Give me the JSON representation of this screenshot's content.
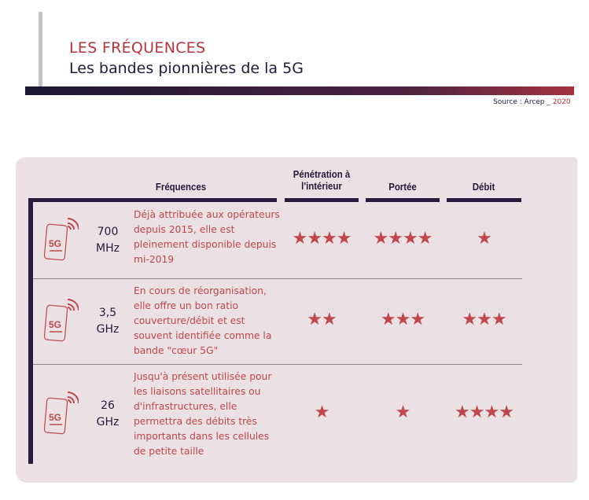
{
  "header": {
    "kicker": "LES FRÉQUENCES",
    "title": "Les bandes pionnières de la 5G",
    "source_label": "Source : Arcep _ ",
    "source_year": "2020"
  },
  "table": {
    "columns": [
      "Fréquences",
      "Pénétration à l'intérieur",
      "Portée",
      "Débit"
    ],
    "accent": "#c0464a",
    "rows": [
      {
        "icon": "5G",
        "freq_value": "700",
        "freq_unit": "MHz",
        "description": "Déjà attribuée aux opérateurs depuis 2015, elle est pleinement disponible depuis mi-2019",
        "penetration": 4,
        "portee": 4,
        "debit": 1
      },
      {
        "icon": "5G",
        "freq_value": "3,5",
        "freq_unit": "GHz",
        "description": "En cours de réorganisation, elle offre un bon ratio couverture/débit et est souvent identifiée comme la bande \"cœur 5G\"",
        "penetration": 2,
        "portee": 3,
        "debit": 3
      },
      {
        "icon": "5G",
        "freq_value": "26",
        "freq_unit": "GHz",
        "description": "Jusqu'à présent utilisée pour les liaisons satellitaires ou d'infrastructures, elle permettra des débits très importants dans les cellules de petite taille",
        "penetration": 1,
        "portee": 1,
        "debit": 4
      }
    ]
  }
}
